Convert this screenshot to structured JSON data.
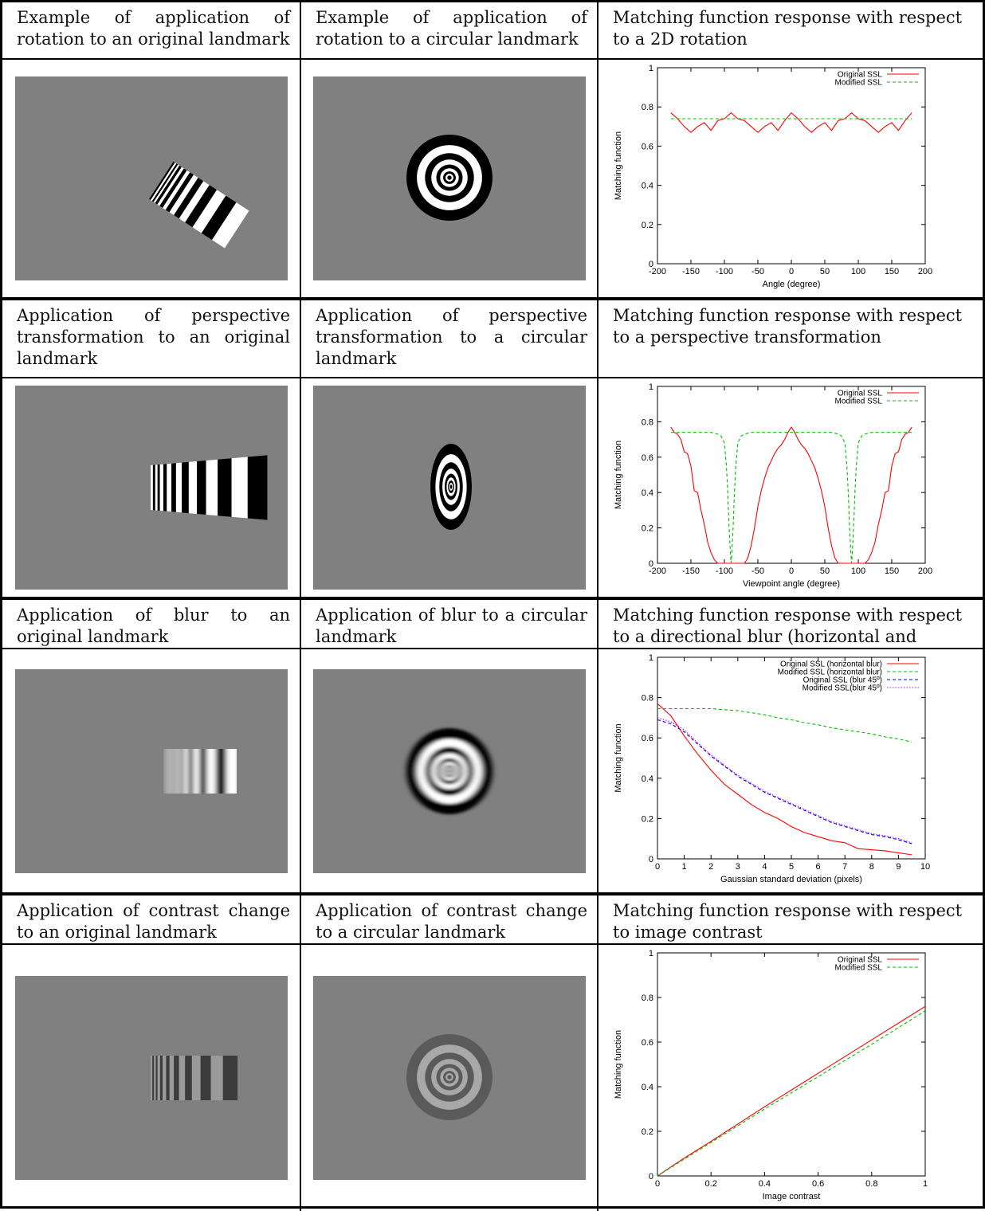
{
  "rows": [
    {
      "headers": [
        "Example of application of rotation to an original landmark",
        "Example of application of rotation to a circular landmark",
        "Matching function response with respect to a 2D rotation"
      ]
    },
    {
      "headers": [
        "Application of perspective transformation to an original landmark",
        "Application of perspective transformation to a circular landmark",
        "Matching function response with respect to a perspective transformation"
      ]
    },
    {
      "headers": [
        "Application of blur to an original landmark",
        "Application of blur to a circular landmark",
        "Matching function response with respect to a directional blur (horizontal and diagonal)"
      ]
    },
    {
      "headers": [
        "Application of contrast change to an original landmark",
        "Application of contrast change to a circular landmark",
        "Matching function response with respect to image contrast"
      ]
    }
  ],
  "colors": {
    "image_background": "#808080",
    "series_original": "#ff0000",
    "series_modified": "#00c000",
    "series_orig45": "#0000ff",
    "series_mod45": "#c000ff"
  },
  "chart_data": [
    {
      "type": "line",
      "xlabel": "Angle (degree)",
      "ylabel": "Matching function",
      "xlim": [
        -200,
        200
      ],
      "ylim": [
        0,
        1
      ],
      "xticks": [
        -200,
        -150,
        -100,
        -50,
        0,
        50,
        100,
        150,
        200
      ],
      "yticks": [
        0,
        0.2,
        0.4,
        0.6,
        0.8,
        1
      ],
      "legend": "top-right",
      "series": [
        {
          "name": "Original SSL",
          "style": "solid",
          "color": "#ff0000",
          "x": [
            -180,
            -170,
            -160,
            -150,
            -140,
            -130,
            -120,
            -110,
            -100,
            -90,
            -80,
            -70,
            -60,
            -50,
            -40,
            -30,
            -20,
            -10,
            0,
            10,
            20,
            30,
            40,
            50,
            60,
            70,
            80,
            90,
            100,
            110,
            120,
            130,
            140,
            150,
            160,
            170,
            180
          ],
          "y": [
            0.77,
            0.74,
            0.7,
            0.67,
            0.7,
            0.72,
            0.68,
            0.73,
            0.74,
            0.77,
            0.74,
            0.73,
            0.7,
            0.67,
            0.7,
            0.72,
            0.68,
            0.73,
            0.77,
            0.74,
            0.7,
            0.67,
            0.7,
            0.72,
            0.68,
            0.73,
            0.74,
            0.77,
            0.74,
            0.73,
            0.7,
            0.67,
            0.7,
            0.72,
            0.68,
            0.73,
            0.77
          ]
        },
        {
          "name": "Modified SSL",
          "style": "dashed",
          "color": "#00c000",
          "x": [
            -180,
            180
          ],
          "y": [
            0.74,
            0.74
          ]
        }
      ]
    },
    {
      "type": "line",
      "xlabel": "Viewpoint angle (degree)",
      "ylabel": "Matching function",
      "xlim": [
        -200,
        200
      ],
      "ylim": [
        0,
        1
      ],
      "xticks": [
        -200,
        -150,
        -100,
        -50,
        0,
        50,
        100,
        150,
        200
      ],
      "yticks": [
        0,
        0.2,
        0.4,
        0.6,
        0.8,
        1
      ],
      "legend": "top-right",
      "series": [
        {
          "name": "Original SSL",
          "style": "solid",
          "color": "#ff0000",
          "x": [
            -180,
            -175,
            -170,
            -165,
            -160,
            -155,
            -150,
            -145,
            -140,
            -135,
            -130,
            -125,
            -120,
            -115,
            -110,
            -105,
            -100,
            -95,
            -90,
            -85,
            -80,
            -75,
            -70,
            -65,
            -60,
            -55,
            -50,
            -45,
            -40,
            -35,
            -30,
            -25,
            -20,
            -15,
            -10,
            -5,
            0,
            5,
            10,
            15,
            20,
            25,
            30,
            35,
            40,
            45,
            50,
            55,
            60,
            65,
            70,
            75,
            80,
            85,
            90,
            95,
            100,
            105,
            110,
            115,
            120,
            125,
            130,
            135,
            140,
            145,
            150,
            155,
            160,
            165,
            170,
            175,
            180
          ],
          "y": [
            0.77,
            0.74,
            0.73,
            0.7,
            0.63,
            0.62,
            0.55,
            0.41,
            0.4,
            0.3,
            0.22,
            0.12,
            0.06,
            0.02,
            0.0,
            0.0,
            0.0,
            0.0,
            0.0,
            0.0,
            0.0,
            0.0,
            0.0,
            0.03,
            0.1,
            0.2,
            0.32,
            0.41,
            0.48,
            0.54,
            0.58,
            0.62,
            0.65,
            0.67,
            0.7,
            0.74,
            0.77,
            0.74,
            0.7,
            0.67,
            0.65,
            0.62,
            0.58,
            0.54,
            0.48,
            0.41,
            0.32,
            0.2,
            0.1,
            0.03,
            0.0,
            0.0,
            0.0,
            0.0,
            0.0,
            0.0,
            0.0,
            0.0,
            0.0,
            0.02,
            0.06,
            0.12,
            0.22,
            0.3,
            0.4,
            0.41,
            0.55,
            0.62,
            0.63,
            0.7,
            0.73,
            0.74,
            0.77
          ]
        },
        {
          "name": "Modified SSL",
          "style": "dashed",
          "color": "#00c000",
          "x": [
            -180,
            -170,
            -160,
            -150,
            -140,
            -130,
            -120,
            -110,
            -105,
            -100,
            -97,
            -95,
            -93,
            -91,
            -90,
            -89,
            -87,
            -85,
            -83,
            -80,
            -75,
            -70,
            -60,
            -40,
            -20,
            0,
            20,
            40,
            60,
            70,
            75,
            80,
            83,
            85,
            87,
            89,
            90,
            91,
            93,
            95,
            97,
            100,
            105,
            110,
            120,
            130,
            140,
            150,
            160,
            170,
            180
          ],
          "y": [
            0.74,
            0.74,
            0.74,
            0.74,
            0.74,
            0.74,
            0.74,
            0.73,
            0.72,
            0.68,
            0.55,
            0.4,
            0.2,
            0.05,
            0.0,
            0.05,
            0.2,
            0.4,
            0.55,
            0.68,
            0.72,
            0.73,
            0.74,
            0.74,
            0.74,
            0.74,
            0.74,
            0.74,
            0.74,
            0.73,
            0.72,
            0.68,
            0.55,
            0.4,
            0.2,
            0.05,
            0.0,
            0.05,
            0.2,
            0.4,
            0.55,
            0.68,
            0.72,
            0.73,
            0.74,
            0.74,
            0.74,
            0.74,
            0.74,
            0.74,
            0.74
          ]
        }
      ]
    },
    {
      "type": "line",
      "xlabel": "Gaussian standard deviation (pixels)",
      "ylabel": "Matching function",
      "xlim": [
        0,
        10
      ],
      "ylim": [
        0,
        1
      ],
      "xticks": [
        0,
        1,
        2,
        3,
        4,
        5,
        6,
        7,
        8,
        9,
        10
      ],
      "yticks": [
        0,
        0.2,
        0.4,
        0.6,
        0.8,
        1
      ],
      "legend": "top-right",
      "series": [
        {
          "name": "Original SSL (horizontal blur)",
          "style": "solid",
          "color": "#ff0000",
          "x": [
            0,
            0.5,
            1,
            1.5,
            2,
            2.5,
            3,
            3.5,
            4,
            4.5,
            5,
            5.5,
            6,
            6.5,
            7,
            7.5,
            8,
            8.5,
            9,
            9.5
          ],
          "y": [
            0.77,
            0.71,
            0.61,
            0.52,
            0.44,
            0.37,
            0.32,
            0.27,
            0.23,
            0.2,
            0.16,
            0.13,
            0.11,
            0.09,
            0.08,
            0.05,
            0.045,
            0.04,
            0.03,
            0.02
          ]
        },
        {
          "name": "Modified SSL (horizontal blur)",
          "style": "dashed",
          "color": "#00c000",
          "x": [
            0,
            0.5,
            1,
            1.5,
            2,
            2.5,
            3,
            3.5,
            4,
            4.5,
            5,
            5.5,
            6,
            6.5,
            7,
            7.5,
            8,
            8.5,
            9,
            9.5
          ],
          "y": [
            0.745,
            0.745,
            0.745,
            0.745,
            0.745,
            0.74,
            0.735,
            0.725,
            0.715,
            0.7,
            0.69,
            0.675,
            0.665,
            0.65,
            0.64,
            0.63,
            0.62,
            0.605,
            0.595,
            0.58
          ]
        },
        {
          "name": "Original SSL (blur 45º)",
          "style": "dashed",
          "color": "#0000ff",
          "x": [
            0,
            0.5,
            1,
            1.5,
            2,
            2.5,
            3,
            3.5,
            4,
            4.5,
            5,
            5.5,
            6,
            6.5,
            7,
            7.5,
            8,
            8.5,
            9,
            9.5
          ],
          "y": [
            0.69,
            0.67,
            0.63,
            0.57,
            0.51,
            0.46,
            0.41,
            0.37,
            0.33,
            0.3,
            0.27,
            0.24,
            0.21,
            0.18,
            0.16,
            0.14,
            0.12,
            0.11,
            0.095,
            0.075
          ]
        },
        {
          "name": "Modified SSL(blur 45º)",
          "style": "dotted",
          "color": "#c000ff",
          "x": [
            0,
            0.5,
            1,
            1.5,
            2,
            2.5,
            3,
            3.5,
            4,
            4.5,
            5,
            5.5,
            6,
            6.5,
            7,
            7.5,
            8,
            8.5,
            9,
            9.5
          ],
          "y": [
            0.7,
            0.68,
            0.64,
            0.575,
            0.515,
            0.465,
            0.415,
            0.375,
            0.335,
            0.305,
            0.275,
            0.245,
            0.215,
            0.185,
            0.165,
            0.145,
            0.125,
            0.115,
            0.1,
            0.08
          ]
        }
      ]
    },
    {
      "type": "line",
      "xlabel": "Image contrast",
      "ylabel": "Matching function",
      "xlim": [
        0,
        1
      ],
      "ylim": [
        0,
        1
      ],
      "xticks": [
        0,
        0.2,
        0.4,
        0.6,
        0.8,
        1
      ],
      "yticks": [
        0,
        0.2,
        0.4,
        0.6,
        0.8,
        1
      ],
      "legend": "top-right",
      "series": [
        {
          "name": "Original SSL",
          "style": "solid",
          "color": "#ff0000",
          "x": [
            0,
            0.1,
            0.2,
            0.4,
            0.6,
            0.8,
            1
          ],
          "y": [
            0.0,
            0.08,
            0.155,
            0.31,
            0.46,
            0.61,
            0.76
          ]
        },
        {
          "name": "Modified SSL",
          "style": "dashed",
          "color": "#00c000",
          "x": [
            0,
            0.1,
            0.2,
            0.4,
            0.6,
            0.8,
            1
          ],
          "y": [
            0.0,
            0.075,
            0.15,
            0.3,
            0.445,
            0.59,
            0.74
          ]
        }
      ]
    }
  ]
}
